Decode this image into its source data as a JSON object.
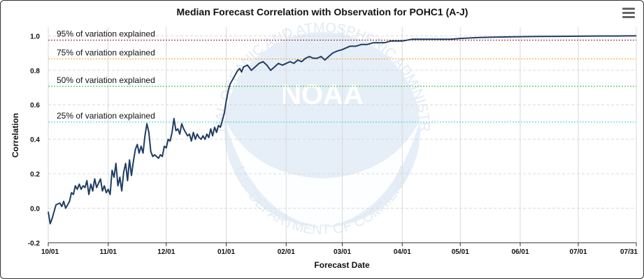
{
  "chart_data": {
    "type": "line",
    "title": "Median Forecast Correlation with Observation for POHC1 (A-J)",
    "xlabel": "Forecast Date",
    "ylabel": "Correlation",
    "x_ticks": [
      "10/01",
      "11/01",
      "12/01",
      "01/01",
      "02/01",
      "03/01",
      "04/01",
      "05/01",
      "06/01",
      "07/01",
      "07/31"
    ],
    "y_ticks": [
      "1.0",
      "0.8",
      "0.6",
      "0.4",
      "0.2",
      "0.0",
      "-0.2"
    ],
    "ylim": [
      -0.2,
      1.05
    ],
    "xlim": [
      "10/01",
      "07/31"
    ],
    "grid": "horizontal dashed",
    "reference_lines": [
      {
        "label": "95% of variation explained",
        "value": 0.975,
        "color": "#8b1a2b"
      },
      {
        "label": "75% of variation explained",
        "value": 0.866,
        "color": "#f0a020"
      },
      {
        "label": "50% of variation explained",
        "value": 0.707,
        "color": "#22bb22"
      },
      {
        "label": "25% of variation explained",
        "value": 0.5,
        "color": "#22d3e6"
      }
    ],
    "series": [
      {
        "color": "#1f3d63",
        "points": [
          [
            "10/01",
            -0.02
          ],
          [
            "10/02",
            -0.09
          ],
          [
            "10/03",
            -0.06
          ],
          [
            "10/05",
            0.02
          ],
          [
            "10/07",
            0.03
          ],
          [
            "10/08",
            0.01
          ],
          [
            "10/09",
            0.04
          ],
          [
            "10/10",
            0.0
          ],
          [
            "10/12",
            0.04
          ],
          [
            "10/13",
            0.09
          ],
          [
            "10/14",
            0.08
          ],
          [
            "10/15",
            0.13
          ],
          [
            "10/16",
            0.11
          ],
          [
            "10/17",
            0.14
          ],
          [
            "10/18",
            0.11
          ],
          [
            "10/19",
            0.13
          ],
          [
            "10/20",
            0.12
          ],
          [
            "10/21",
            0.16
          ],
          [
            "10/22",
            0.08
          ],
          [
            "10/23",
            0.14
          ],
          [
            "10/24",
            0.1
          ],
          [
            "10/25",
            0.17
          ],
          [
            "10/26",
            0.12
          ],
          [
            "10/28",
            0.17
          ],
          [
            "10/29",
            0.1
          ],
          [
            "10/30",
            0.13
          ],
          [
            "10/31",
            0.09
          ],
          [
            "11/01",
            0.11
          ],
          [
            "11/02",
            0.08
          ],
          [
            "11/03",
            0.22
          ],
          [
            "11/04",
            0.18
          ],
          [
            "11/05",
            0.26
          ],
          [
            "11/06",
            0.13
          ],
          [
            "11/07",
            0.18
          ],
          [
            "11/08",
            0.1
          ],
          [
            "11/09",
            0.21
          ],
          [
            "11/10",
            0.26
          ],
          [
            "11/11",
            0.16
          ],
          [
            "11/12",
            0.28
          ],
          [
            "11/13",
            0.19
          ],
          [
            "11/14",
            0.27
          ],
          [
            "11/15",
            0.34
          ],
          [
            "11/16",
            0.37
          ],
          [
            "11/17",
            0.32
          ],
          [
            "11/18",
            0.36
          ],
          [
            "11/19",
            0.32
          ],
          [
            "11/20",
            0.42
          ],
          [
            "11/21",
            0.49
          ],
          [
            "11/22",
            0.44
          ],
          [
            "11/23",
            0.33
          ],
          [
            "11/24",
            0.3
          ],
          [
            "11/25",
            0.31
          ],
          [
            "11/26",
            0.3
          ],
          [
            "11/27",
            0.29
          ],
          [
            "11/28",
            0.31
          ],
          [
            "11/29",
            0.3
          ],
          [
            "11/30",
            0.36
          ],
          [
            "12/01",
            0.35
          ],
          [
            "12/02",
            0.4
          ],
          [
            "12/03",
            0.39
          ],
          [
            "12/04",
            0.44
          ],
          [
            "12/05",
            0.52
          ],
          [
            "12/06",
            0.45
          ],
          [
            "12/07",
            0.46
          ],
          [
            "12/08",
            0.43
          ],
          [
            "12/09",
            0.49
          ],
          [
            "12/10",
            0.46
          ],
          [
            "12/11",
            0.44
          ],
          [
            "12/12",
            0.42
          ],
          [
            "12/13",
            0.43
          ],
          [
            "12/14",
            0.39
          ],
          [
            "12/15",
            0.44
          ],
          [
            "12/16",
            0.4
          ],
          [
            "12/17",
            0.43
          ],
          [
            "12/18",
            0.41
          ],
          [
            "12/19",
            0.4
          ],
          [
            "12/20",
            0.42
          ],
          [
            "12/21",
            0.4
          ],
          [
            "12/22",
            0.43
          ],
          [
            "12/23",
            0.41
          ],
          [
            "12/24",
            0.46
          ],
          [
            "12/25",
            0.42
          ],
          [
            "12/26",
            0.47
          ],
          [
            "12/27",
            0.44
          ],
          [
            "12/28",
            0.48
          ],
          [
            "12/29",
            0.47
          ],
          [
            "12/30",
            0.51
          ],
          [
            "12/31",
            0.55
          ],
          [
            "01/01",
            0.62
          ],
          [
            "01/02",
            0.68
          ],
          [
            "01/03",
            0.72
          ],
          [
            "01/04",
            0.74
          ],
          [
            "01/05",
            0.76
          ],
          [
            "01/06",
            0.78
          ],
          [
            "01/07",
            0.8
          ],
          [
            "01/08",
            0.81
          ],
          [
            "01/09",
            0.79
          ],
          [
            "01/10",
            0.82
          ],
          [
            "01/12",
            0.83
          ],
          [
            "01/14",
            0.8
          ],
          [
            "01/16",
            0.82
          ],
          [
            "01/18",
            0.84
          ],
          [
            "01/20",
            0.85
          ],
          [
            "01/22",
            0.83
          ],
          [
            "01/24",
            0.8
          ],
          [
            "01/26",
            0.82
          ],
          [
            "01/28",
            0.84
          ],
          [
            "01/30",
            0.83
          ],
          [
            "02/01",
            0.84
          ],
          [
            "02/03",
            0.85
          ],
          [
            "02/05",
            0.84
          ],
          [
            "02/07",
            0.86
          ],
          [
            "02/09",
            0.85
          ],
          [
            "02/11",
            0.87
          ],
          [
            "02/13",
            0.88
          ],
          [
            "02/15",
            0.87
          ],
          [
            "02/17",
            0.87
          ],
          [
            "02/19",
            0.88
          ],
          [
            "02/21",
            0.86
          ],
          [
            "02/23",
            0.88
          ],
          [
            "02/25",
            0.9
          ],
          [
            "02/27",
            0.91
          ],
          [
            "03/01",
            0.92
          ],
          [
            "03/03",
            0.93
          ],
          [
            "03/05",
            0.94
          ],
          [
            "03/08",
            0.94
          ],
          [
            "03/11",
            0.95
          ],
          [
            "03/14",
            0.95
          ],
          [
            "03/17",
            0.96
          ],
          [
            "03/20",
            0.96
          ],
          [
            "03/23",
            0.96
          ],
          [
            "03/26",
            0.97
          ],
          [
            "03/29",
            0.97
          ],
          [
            "04/01",
            0.97
          ],
          [
            "04/06",
            0.98
          ],
          [
            "04/11",
            0.98
          ],
          [
            "04/16",
            0.98
          ],
          [
            "04/21",
            0.98
          ],
          [
            "04/26",
            0.98
          ],
          [
            "05/01",
            0.985
          ],
          [
            "05/11",
            0.99
          ],
          [
            "05/21",
            0.993
          ],
          [
            "06/01",
            0.995
          ],
          [
            "06/11",
            0.996
          ],
          [
            "06/21",
            0.997
          ],
          [
            "07/01",
            0.998
          ],
          [
            "07/11",
            0.999
          ],
          [
            "07/21",
            0.999
          ],
          [
            "07/31",
            1.0
          ]
        ]
      }
    ],
    "watermark": {
      "ring_text_top": "NATIONAL OCEANIC AND ATMOSPHERIC ADMINISTRATION",
      "ring_text_bottom": "U.S. DEPARTMENT OF COMMERCE",
      "center_text": "NOAA"
    }
  },
  "colors": {
    "line": "#1f3d63",
    "grid": "#d9d9d9",
    "watermark": "#e6eef8"
  },
  "menu": {
    "icon": "hamburger-menu-icon"
  }
}
